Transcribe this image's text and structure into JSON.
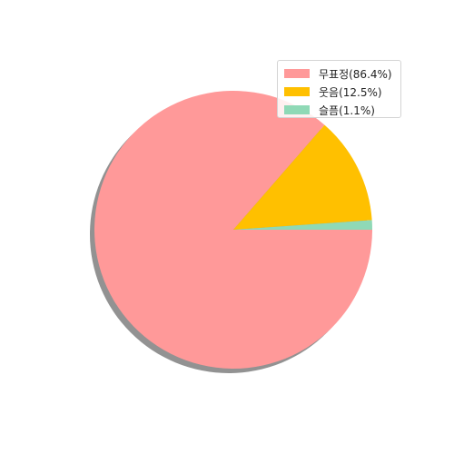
{
  "chart_data": {
    "type": "pie",
    "title": "",
    "shadow": true,
    "start_angle_deg": 0,
    "direction": "clockwise",
    "legend_position": "top-right",
    "slices": [
      {
        "label": "무표정(86.4%)",
        "value": 86.4,
        "color": "#ff9999"
      },
      {
        "label": "웃음(12.5%)",
        "value": 12.5,
        "color": "#ffc000"
      },
      {
        "label": "슬픔(1.1%)",
        "value": 1.1,
        "color": "#8fd9b6"
      }
    ]
  }
}
